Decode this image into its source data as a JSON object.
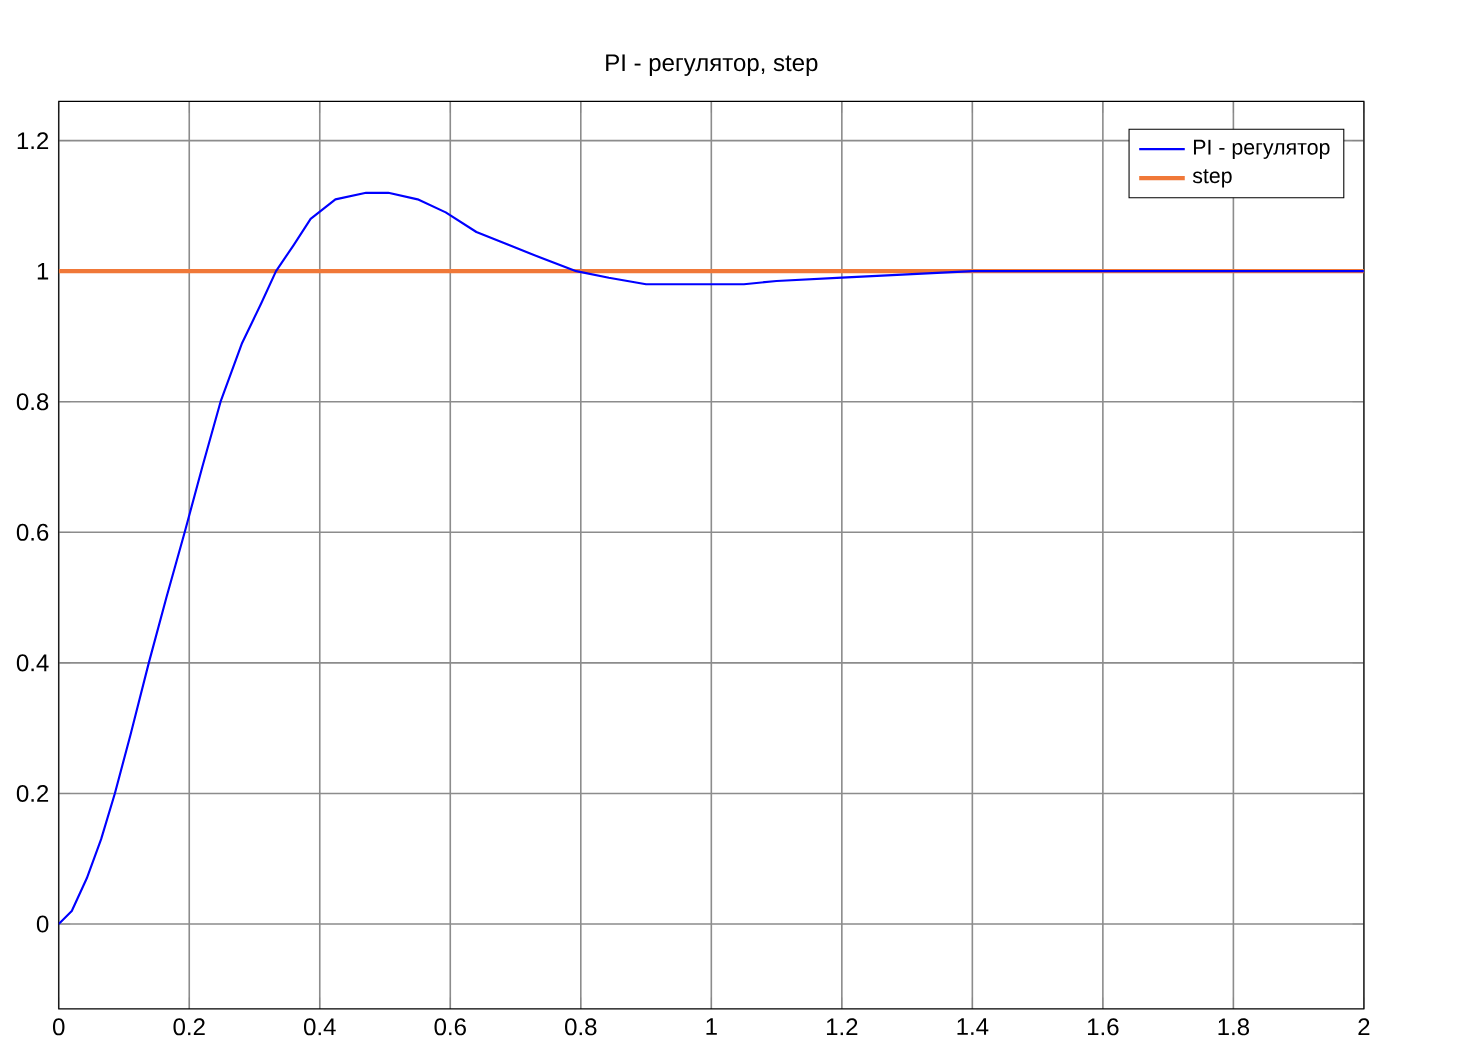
{
  "chart_data": {
    "type": "line",
    "title": "PI - регулятор, step",
    "xlim": [
      0,
      2
    ],
    "ylim": [
      -0.13,
      1.26
    ],
    "xticks": [
      0,
      0.2,
      0.4,
      0.6,
      0.8,
      1,
      1.2,
      1.4,
      1.6,
      1.8,
      2
    ],
    "yticks": [
      0,
      0.2,
      0.4,
      0.6,
      0.8,
      1,
      1.2
    ],
    "grid": true,
    "legend": "top right",
    "series": [
      {
        "name": "PI - регулятор",
        "type": "line",
        "color": "#0000ff",
        "x": [
          0,
          0.02,
          0.043,
          0.065,
          0.086,
          0.11,
          0.138,
          0.165,
          0.193,
          0.22,
          0.248,
          0.281,
          0.31,
          0.333,
          0.36,
          0.386,
          0.424,
          0.471,
          0.505,
          0.55,
          0.593,
          0.64,
          0.69,
          0.74,
          0.793,
          0.843,
          0.9,
          0.98,
          1.05,
          1.1,
          1.2,
          1.3,
          1.4,
          1.6,
          1.8,
          2
        ],
        "values": [
          0,
          0.02,
          0.07,
          0.13,
          0.2,
          0.29,
          0.4,
          0.5,
          0.6,
          0.7,
          0.8,
          0.89,
          0.95,
          1.0,
          1.04,
          1.08,
          1.11,
          1.12,
          1.12,
          1.11,
          1.09,
          1.06,
          1.04,
          1.02,
          1.0,
          0.99,
          0.98,
          0.98,
          0.98,
          0.985,
          0.99,
          0.995,
          1.0,
          1.0,
          1.0,
          1.0
        ]
      },
      {
        "name": "step",
        "type": "step",
        "color": "#f07838",
        "x": [
          0,
          2
        ],
        "values": [
          1,
          1
        ]
      }
    ]
  }
}
